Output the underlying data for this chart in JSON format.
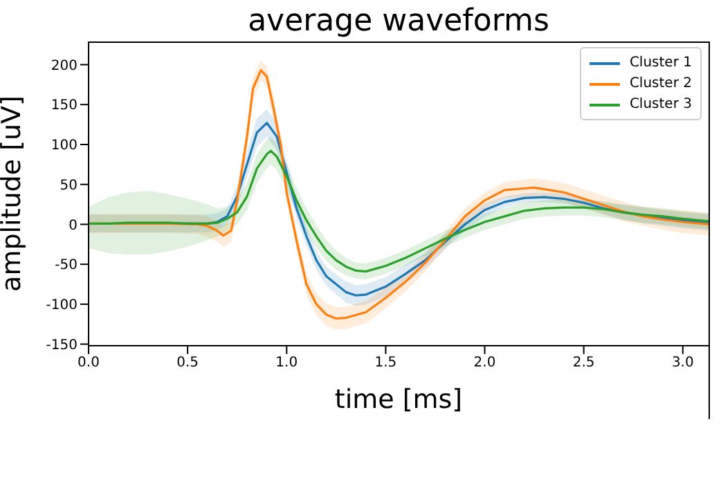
{
  "chart_data": {
    "type": "line",
    "title": "average waveforms",
    "xlabel": "time [ms]",
    "ylabel": "amplitude [uV]",
    "xlim": [
      0,
      3.13
    ],
    "ylim": [
      -152,
      229
    ],
    "xticks": [
      {
        "value": 0,
        "label": "0.0"
      },
      {
        "value": 0.5,
        "label": "0.5"
      },
      {
        "value": 1,
        "label": "1.0"
      },
      {
        "value": 1.5,
        "label": "1.5"
      },
      {
        "value": 2,
        "label": "2.0"
      },
      {
        "value": 2.5,
        "label": "2.5"
      },
      {
        "value": 3,
        "label": "3.0"
      }
    ],
    "yticks": [
      -150,
      -100,
      -50,
      0,
      50,
      100,
      150,
      200
    ],
    "grid": false,
    "legend": "top right",
    "marker": "none",
    "line_style": "solid",
    "series": [
      {
        "name": "Cluster 1",
        "color": "#1f77b4",
        "x": [
          0,
          0.2,
          0.4,
          0.6,
          0.65,
          0.7,
          0.75,
          0.8,
          0.85,
          0.9,
          0.95,
          1.0,
          1.05,
          1.1,
          1.15,
          1.2,
          1.3,
          1.35,
          1.4,
          1.5,
          1.6,
          1.7,
          1.8,
          1.9,
          2.0,
          2.1,
          2.2,
          2.3,
          2.4,
          2.5,
          2.6,
          2.7,
          2.8,
          2.9,
          3.0,
          3.13
        ],
        "values": [
          null,
          null,
          1,
          1,
          3,
          10,
          35,
          75,
          115,
          127,
          110,
          65,
          20,
          -15,
          -45,
          -65,
          -85,
          -89,
          -88,
          -78,
          -62,
          -45,
          -22,
          0,
          18,
          28,
          33,
          34,
          32,
          27,
          20,
          15,
          11,
          8,
          5,
          2
        ],
        "lower": [
          -10,
          -10,
          -10,
          -10,
          -8,
          0,
          22,
          58,
          97,
          110,
          93,
          50,
          8,
          -27,
          -57,
          -77,
          -98,
          -102,
          -101,
          -90,
          -73,
          -55,
          -31,
          -8,
          10,
          21,
          27,
          28,
          26,
          21,
          13,
          6,
          1,
          -2,
          -5,
          -8
        ],
        "upper": [
          12,
          12,
          12,
          12,
          14,
          20,
          48,
          92,
          133,
          144,
          127,
          80,
          32,
          -3,
          -33,
          -53,
          -72,
          -76,
          -75,
          -66,
          -51,
          -35,
          -13,
          8,
          26,
          35,
          39,
          40,
          38,
          33,
          27,
          24,
          21,
          18,
          15,
          12
        ]
      },
      {
        "name": "Cluster 2",
        "color": "#ff7f0e",
        "x": [
          0,
          0.2,
          0.4,
          0.55,
          0.6,
          0.65,
          0.68,
          0.72,
          0.75,
          0.8,
          0.83,
          0.87,
          0.9,
          0.93,
          0.97,
          1.0,
          1.05,
          1.1,
          1.15,
          1.2,
          1.25,
          1.3,
          1.4,
          1.5,
          1.6,
          1.7,
          1.8,
          1.9,
          2.0,
          2.1,
          2.2,
          2.25,
          2.3,
          2.4,
          2.5,
          2.6,
          2.7,
          2.8,
          2.9,
          3.0,
          3.13
        ],
        "values": [
          1,
          1,
          1,
          0,
          -2,
          -8,
          -14,
          -8,
          30,
          110,
          170,
          193,
          185,
          150,
          100,
          40,
          -20,
          -75,
          -100,
          -113,
          -118,
          -117,
          -110,
          -92,
          -72,
          -48,
          -20,
          10,
          30,
          43,
          45,
          46,
          44,
          40,
          32,
          24,
          16,
          10,
          6,
          3,
          0
        ],
        "lower": [
          -11,
          -11,
          -11,
          -12,
          -16,
          -22,
          -28,
          -22,
          18,
          95,
          155,
          180,
          172,
          135,
          85,
          27,
          -32,
          -88,
          -114,
          -127,
          -132,
          -131,
          -124,
          -105,
          -84,
          -59,
          -30,
          0,
          20,
          33,
          34,
          34,
          32,
          28,
          20,
          12,
          4,
          -2,
          -7,
          -11,
          -14
        ],
        "upper": [
          13,
          13,
          13,
          12,
          10,
          4,
          -2,
          4,
          44,
          125,
          185,
          205,
          198,
          165,
          115,
          53,
          -8,
          -62,
          -86,
          -99,
          -104,
          -103,
          -96,
          -79,
          -60,
          -37,
          -10,
          20,
          40,
          53,
          56,
          58,
          56,
          52,
          44,
          36,
          28,
          22,
          19,
          17,
          14
        ]
      },
      {
        "name": "Cluster 3",
        "color": "#2ca02c",
        "x": [
          0,
          0.1,
          0.2,
          0.3,
          0.4,
          0.5,
          0.6,
          0.65,
          0.7,
          0.75,
          0.8,
          0.85,
          0.9,
          0.92,
          0.95,
          1.0,
          1.05,
          1.1,
          1.15,
          1.2,
          1.25,
          1.3,
          1.35,
          1.4,
          1.5,
          1.6,
          1.7,
          1.8,
          1.9,
          2.0,
          2.1,
          2.2,
          2.3,
          2.4,
          2.5,
          2.6,
          2.7,
          2.8,
          2.9,
          3.0,
          3.13
        ],
        "values": [
          1,
          1,
          2,
          2,
          2,
          1,
          1,
          2,
          7,
          15,
          35,
          70,
          88,
          92,
          85,
          60,
          30,
          5,
          -15,
          -33,
          -45,
          -53,
          -58,
          -59,
          -52,
          -42,
          -30,
          -18,
          -7,
          3,
          10,
          17,
          20,
          21,
          21,
          19,
          15,
          12,
          10,
          7,
          4
        ],
        "lower": [
          -30,
          -36,
          -38,
          -38,
          -34,
          -28,
          -20,
          -15,
          -8,
          0,
          18,
          52,
          70,
          75,
          68,
          44,
          15,
          -10,
          -29,
          -46,
          -57,
          -64,
          -68,
          -69,
          -62,
          -52,
          -40,
          -28,
          -17,
          -7,
          0,
          7,
          10,
          11,
          11,
          9,
          5,
          2,
          0,
          -3,
          -6
        ],
        "upper": [
          22,
          34,
          40,
          42,
          38,
          32,
          25,
          20,
          22,
          30,
          52,
          88,
          106,
          109,
          102,
          76,
          45,
          20,
          -1,
          -20,
          -33,
          -42,
          -48,
          -49,
          -42,
          -32,
          -20,
          -8,
          3,
          13,
          20,
          27,
          30,
          31,
          31,
          29,
          25,
          22,
          20,
          17,
          14
        ]
      }
    ]
  }
}
